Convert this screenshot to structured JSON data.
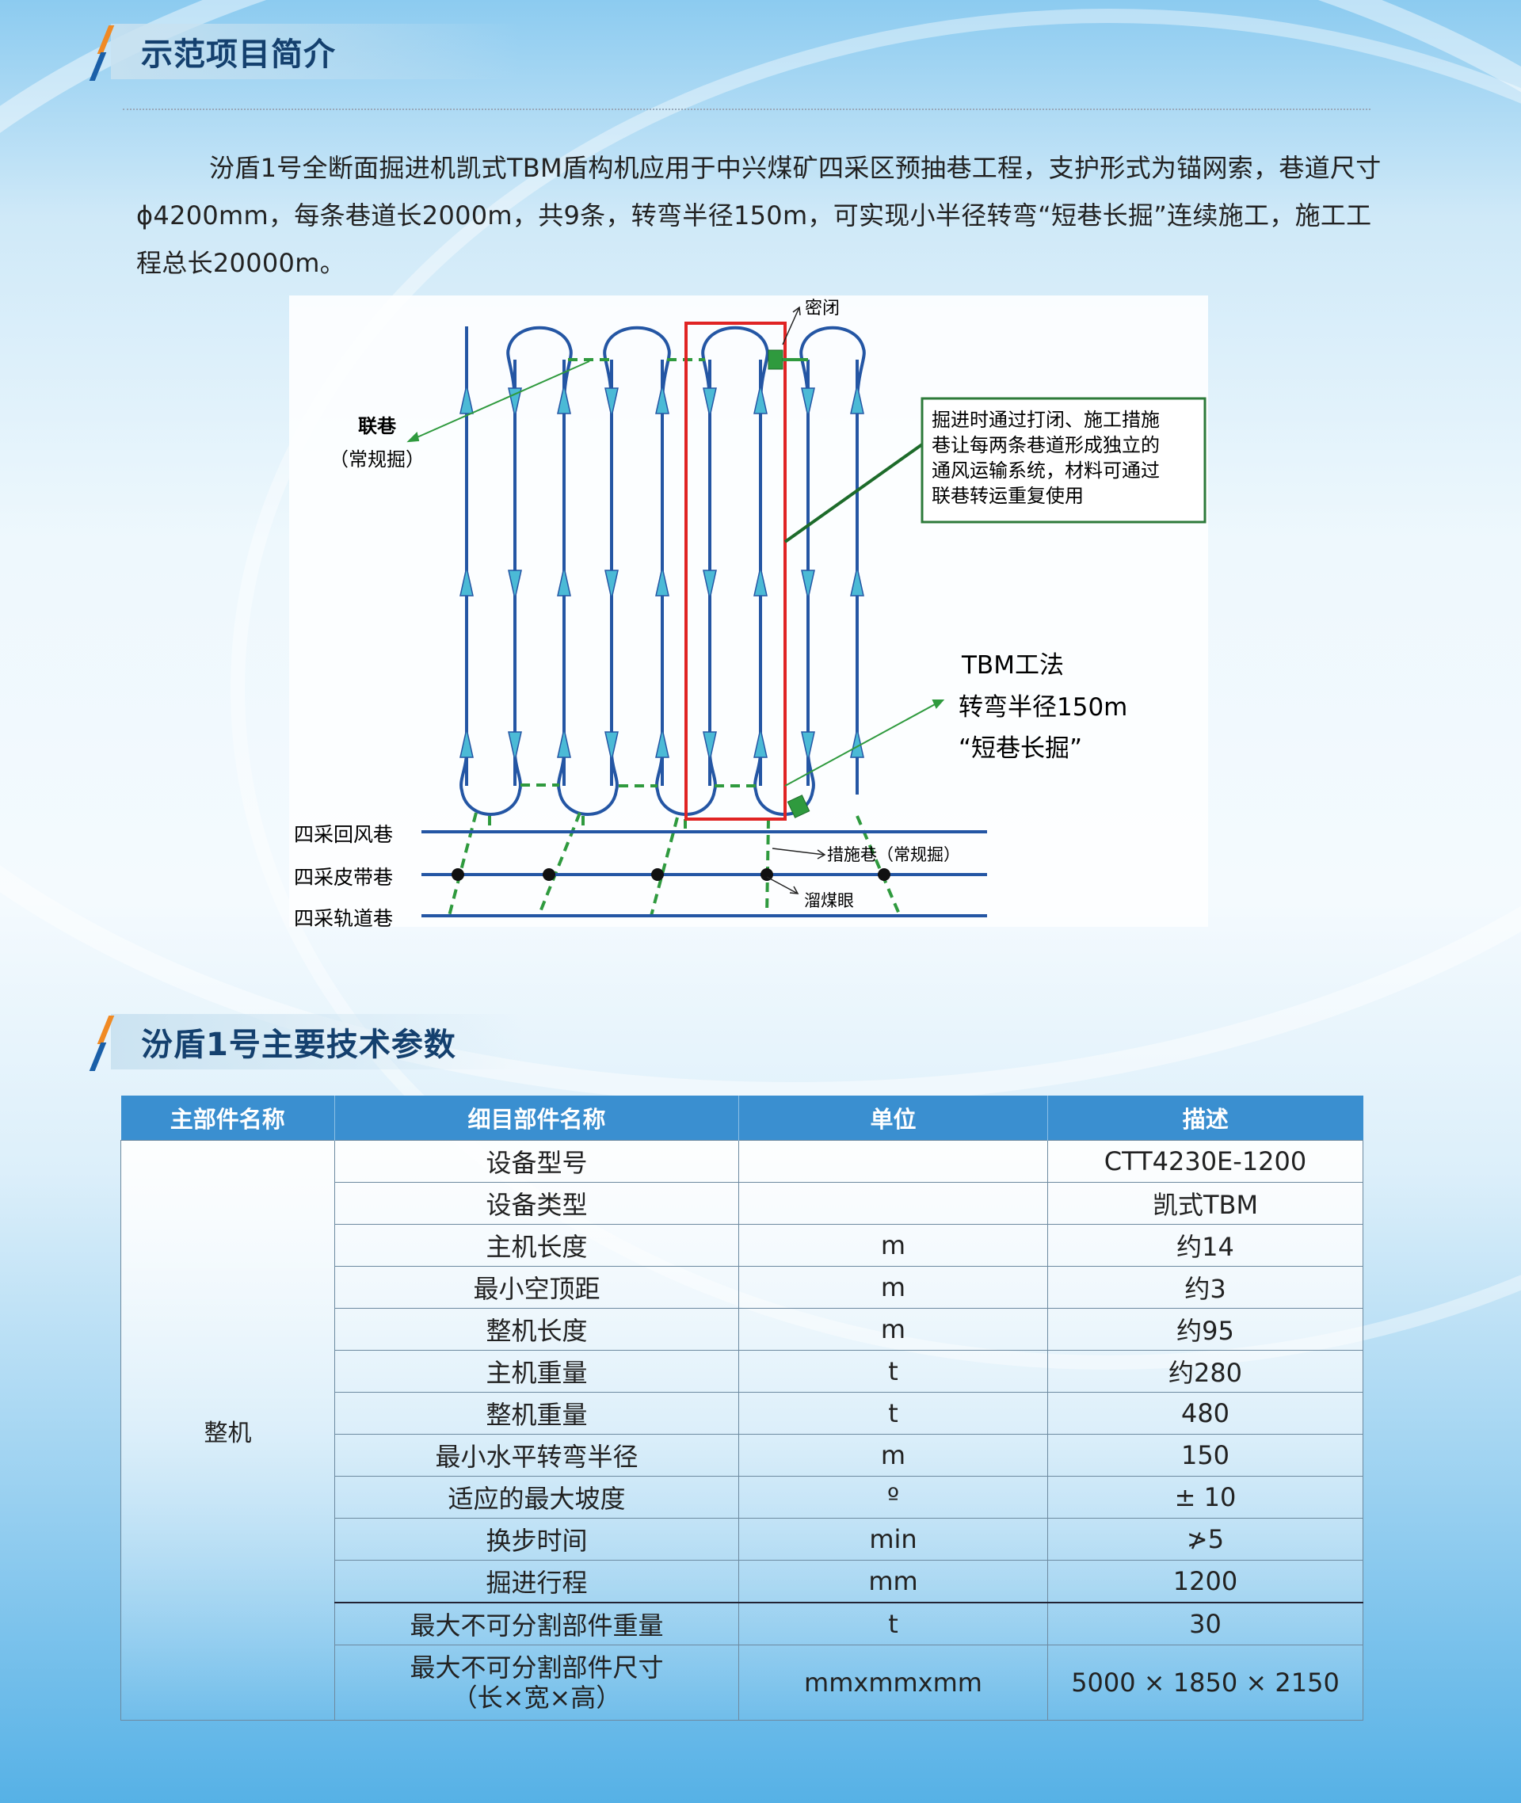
{
  "colors": {
    "accent_orange": "#f08a24",
    "accent_blue": "#1a5fa8",
    "heading_text": "#14406e",
    "table_header": "#3a8fd0",
    "tunnel_line": "#2456a4",
    "green": "#2f9a3e",
    "red_box": "#e02424",
    "arrow_fill": "#4bbad6"
  },
  "section1": {
    "title": "示范项目简介",
    "paragraph": "汾盾1号全断面掘进机凯式TBM盾构机应用于中兴煤矿四采区预抽巷工程，支护形式为锚网索，巷道尺寸ϕ4200mm，每条巷道长2000m，共9条，转弯半径150m，可实现小半径转弯“短巷长掘”连续施工，施工工程总长20000m。"
  },
  "diagram": {
    "label_seal": "密闭",
    "label_connect": "联巷",
    "label_connect_sub": "（常规掘）",
    "callout": [
      "掘进时通过打闭、施工措施",
      "巷让每两条巷道形成独立的",
      "通风运输系统，材料可通过",
      "联巷转运重复使用"
    ],
    "tbm": [
      "TBM工法",
      "转弯半径150m",
      "“短巷长掘”"
    ],
    "roadway_return": "四采回风巷",
    "roadway_belt": "四采皮带巷",
    "roadway_track": "四采轨道巷",
    "label_measure": "措施巷（常规掘）",
    "label_chute": "溜煤眼"
  },
  "section2": {
    "title": "汾盾1号主要技术参数"
  },
  "table": {
    "headers": [
      "主部件名称",
      "细目部件名称",
      "单位",
      "描述"
    ],
    "group": "整机",
    "rows": [
      {
        "name": "设备型号",
        "unit": "",
        "desc": "CTT4230E-1200"
      },
      {
        "name": "设备类型",
        "unit": "",
        "desc": "凯式TBM"
      },
      {
        "name": "主机长度",
        "unit": "m",
        "desc": "约14"
      },
      {
        "name": "最小空顶距",
        "unit": "m",
        "desc": "约3"
      },
      {
        "name": "整机长度",
        "unit": "m",
        "desc": "约95"
      },
      {
        "name": "主机重量",
        "unit": "t",
        "desc": "约280"
      },
      {
        "name": "整机重量",
        "unit": "t",
        "desc": "480"
      },
      {
        "name": "最小水平转弯半径",
        "unit": "m",
        "desc": "150"
      },
      {
        "name": "适应的最大坡度",
        "unit": "º",
        "desc": "± 10"
      },
      {
        "name": "换步时间",
        "unit": "min",
        "desc": "≯5"
      },
      {
        "name": "掘进行程",
        "unit": "mm",
        "desc": "1200"
      },
      {
        "name": "最大不可分割部件重量",
        "unit": "t",
        "desc": "30"
      },
      {
        "name": "最大不可分割部件尺寸",
        "name2": "（长×宽×高）",
        "unit": "mmxmmxmm",
        "desc": "5000 × 1850 × 2150"
      }
    ]
  }
}
